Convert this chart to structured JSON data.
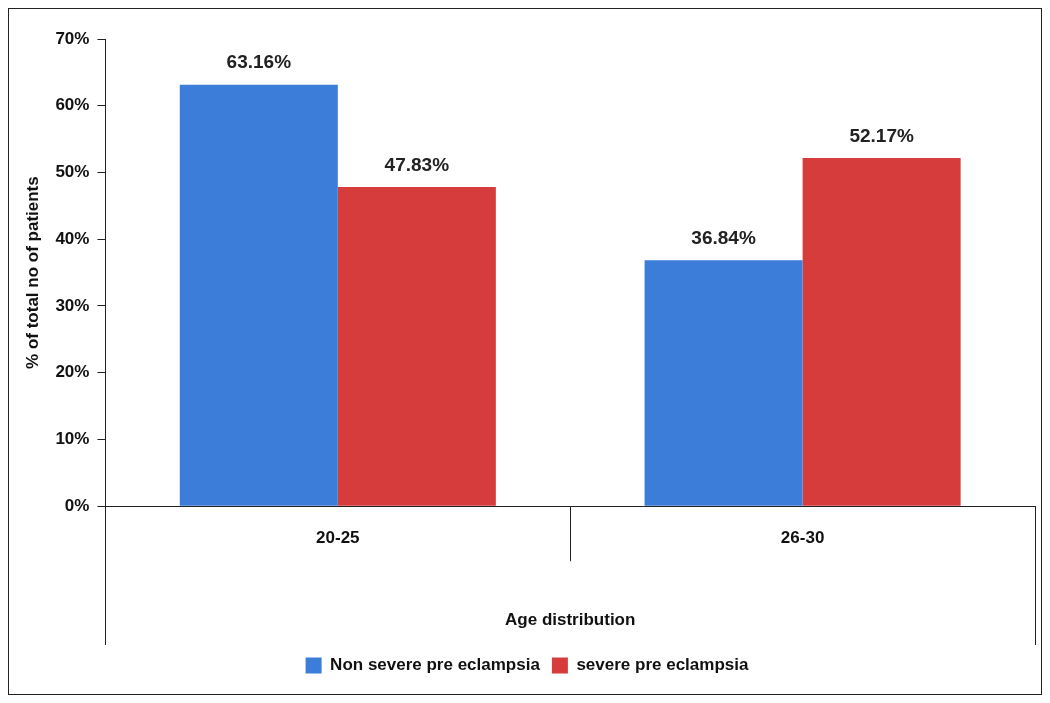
{
  "chart_data": {
    "type": "bar",
    "xlabel": "Age distribution",
    "ylabel": "% of total no of patients",
    "categories": [
      "20-25",
      "26-30"
    ],
    "series": [
      {
        "name": "Non severe pre eclampsia",
        "color": "#3b7dd8",
        "values": [
          63.16,
          36.84
        ],
        "value_labels": [
          "63.16%",
          "36.84%"
        ]
      },
      {
        "name": "severe pre eclampsia",
        "color": "#d63c3c",
        "values": [
          47.83,
          52.17
        ],
        "value_labels": [
          "47.83%",
          "52.17%"
        ]
      }
    ],
    "ylim": [
      0,
      70
    ],
    "yticks": [
      {
        "value": 0,
        "label": "0%"
      },
      {
        "value": 10,
        "label": "10%"
      },
      {
        "value": 20,
        "label": "20%"
      },
      {
        "value": 30,
        "label": "30%"
      },
      {
        "value": 40,
        "label": "40%"
      },
      {
        "value": 50,
        "label": "50%"
      },
      {
        "value": 60,
        "label": "60%"
      },
      {
        "value": 70,
        "label": "70%"
      }
    ],
    "legend": "bottom"
  }
}
